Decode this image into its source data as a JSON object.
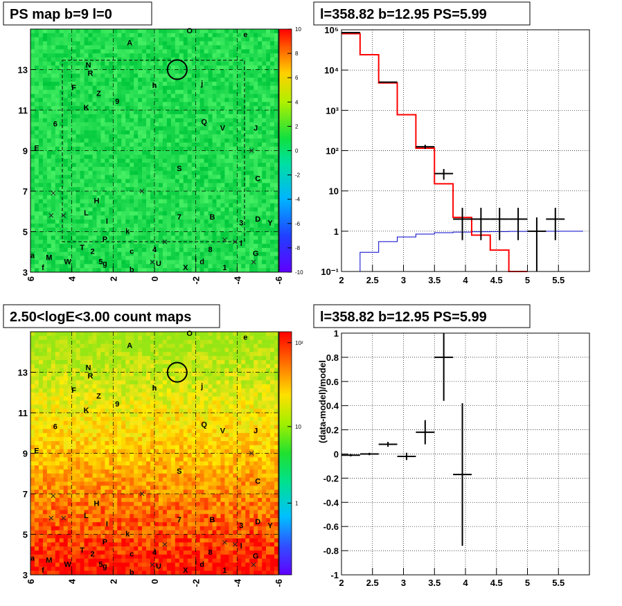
{
  "chart_data": [
    {
      "type": "heatmap",
      "title": "PS map b=9 l=0",
      "x_ticks": [
        "6",
        "4",
        "2",
        "0",
        "-2",
        "-4",
        "-6"
      ],
      "y_ticks": [
        "3",
        "5",
        "7",
        "9",
        "11",
        "13"
      ],
      "xlim": [
        6,
        -6
      ],
      "ylim": [
        3,
        15
      ],
      "colorbar_ticks": [
        "10",
        "8",
        "6",
        "4",
        "2",
        "0",
        "-2",
        "-4",
        "-6",
        "-8",
        "-10"
      ],
      "colorbar_range": [
        -10,
        10
      ],
      "circle": {
        "l": -1.1,
        "b": 13.0
      },
      "sources": [
        {
          "label": "O",
          "l": -1.7,
          "b": 14.8
        },
        {
          "label": "e",
          "l": -4.4,
          "b": 14.6
        },
        {
          "label": "A",
          "l": 1.2,
          "b": 14.2
        },
        {
          "label": "N",
          "l": 3.2,
          "b": 13.1
        },
        {
          "label": "R",
          "l": 3.1,
          "b": 12.7
        },
        {
          "label": "h",
          "l": 0.0,
          "b": 12.1
        },
        {
          "label": "j",
          "l": -2.3,
          "b": 12.2
        },
        {
          "label": "F",
          "l": 3.9,
          "b": 12.0
        },
        {
          "label": "Z",
          "l": 2.7,
          "b": 11.7
        },
        {
          "label": "9",
          "l": 1.8,
          "b": 11.3
        },
        {
          "label": "K",
          "l": 3.3,
          "b": 11.0
        },
        {
          "label": "6",
          "l": 4.8,
          "b": 10.2
        },
        {
          "label": "Q",
          "l": -2.4,
          "b": 10.3
        },
        {
          "label": "V",
          "l": -3.3,
          "b": 10.0
        },
        {
          "label": "J",
          "l": -4.9,
          "b": 10.0
        },
        {
          "label": "E",
          "l": 5.7,
          "b": 9.0
        },
        {
          "label": "S",
          "l": -1.2,
          "b": 8.0
        },
        {
          "label": "C",
          "l": -5.0,
          "b": 7.5
        },
        {
          "label": "H",
          "l": 2.8,
          "b": 6.4
        },
        {
          "label": "L",
          "l": 3.3,
          "b": 5.8
        },
        {
          "label": "I",
          "l": 2.3,
          "b": 5.4
        },
        {
          "label": "7",
          "l": -1.2,
          "b": 5.6
        },
        {
          "label": "B",
          "l": -2.8,
          "b": 5.6
        },
        {
          "label": "3",
          "l": -4.2,
          "b": 5.3
        },
        {
          "label": "D",
          "l": -5.0,
          "b": 5.5
        },
        {
          "label": "Y",
          "l": -5.6,
          "b": 5.3
        },
        {
          "label": "k",
          "l": 1.3,
          "b": 4.9
        },
        {
          "label": "P",
          "l": 2.4,
          "b": 4.5
        },
        {
          "label": "T",
          "l": 3.5,
          "b": 4.1
        },
        {
          "label": "2",
          "l": 3.0,
          "b": 3.9
        },
        {
          "label": "c",
          "l": 1.1,
          "b": 3.9
        },
        {
          "label": "4",
          "l": 0.0,
          "b": 4.0
        },
        {
          "label": "8",
          "l": -2.7,
          "b": 4.0
        },
        {
          "label": "l",
          "l": -4.2,
          "b": 4.3
        },
        {
          "label": "G",
          "l": -4.9,
          "b": 3.8
        },
        {
          "label": "a",
          "l": 5.9,
          "b": 3.7
        },
        {
          "label": "M",
          "l": 5.1,
          "b": 3.6
        },
        {
          "label": "W",
          "l": 4.2,
          "b": 3.4
        },
        {
          "label": "5",
          "l": 2.6,
          "b": 3.4
        },
        {
          "label": "g",
          "l": 2.4,
          "b": 3.3
        },
        {
          "label": "U",
          "l": -0.2,
          "b": 3.3
        },
        {
          "label": "i",
          "l": -2.0,
          "b": 3.5
        },
        {
          "label": "d",
          "l": -2.3,
          "b": 3.4
        },
        {
          "label": "X",
          "l": -1.5,
          "b": 3.1
        },
        {
          "label": "1",
          "l": -3.4,
          "b": 3.1
        },
        {
          "label": "f",
          "l": 5.4,
          "b": 3.1
        },
        {
          "label": "b",
          "l": 1.1,
          "b": 3.0
        }
      ],
      "crosses": [
        {
          "l": 4.9,
          "b": 6.9
        },
        {
          "l": 0.6,
          "b": 7.0
        },
        {
          "l": 5.0,
          "b": 5.8
        },
        {
          "l": 4.4,
          "b": 5.8
        },
        {
          "l": -0.5,
          "b": 4.5
        },
        {
          "l": -3.4,
          "b": 4.6
        },
        {
          "l": -3.9,
          "b": 4.5
        },
        {
          "l": -4.8,
          "b": 3.5
        },
        {
          "l": 0.1,
          "b": 3.5
        },
        {
          "l": -4.7,
          "b": 9.0
        }
      ]
    },
    {
      "type": "line",
      "title": "l=358.82 b=12.95 PS=5.99",
      "xlim": [
        2,
        6
      ],
      "ylim": [
        0.1,
        100000
      ],
      "log_y": true,
      "x_ticks": [
        "2",
        "2.5",
        "3",
        "3.5",
        "4",
        "4.5",
        "5",
        "5.5"
      ],
      "y_ticks": [
        "10⁻¹",
        "1",
        "10",
        "10²",
        "10³",
        "10⁴",
        "10⁵"
      ],
      "grid": true,
      "bin_edges": [
        2.0,
        2.3,
        2.6,
        2.9,
        3.2,
        3.5,
        3.8,
        4.1,
        4.4,
        4.7,
        5.0,
        5.3,
        5.6,
        5.9
      ],
      "series": [
        {
          "color": "#ff0000",
          "values": [
            80000,
            24000,
            4800,
            780,
            115,
            15,
            2.2,
            0.8,
            0.34,
            0.1
          ]
        },
        {
          "color": "#0000cc",
          "values": [
            0.1,
            0.3,
            0.55,
            0.72,
            0.85,
            0.92,
            0.95,
            0.97,
            0.98,
            0.99,
            1.0,
            1.0,
            1.0
          ]
        },
        {
          "color": "#000000",
          "values": [
            85000,
            null,
            5000,
            null,
            125,
            27,
            2,
            2,
            2,
            2,
            1,
            2,
            null
          ]
        }
      ],
      "errors_low": [
        null,
        null,
        null,
        null,
        15,
        8,
        1.4,
        1.4,
        1.4,
        1.4,
        0.95,
        1.4,
        null
      ],
      "errors_high": [
        null,
        null,
        null,
        null,
        15,
        8,
        1.8,
        1.8,
        1.8,
        1.8,
        1.2,
        1.8,
        null
      ]
    },
    {
      "type": "heatmap",
      "title": "2.50<logE<3.00 count maps",
      "x_ticks": [
        "6",
        "4",
        "2",
        "0",
        "-2",
        "-4",
        "-6"
      ],
      "y_ticks": [
        "3",
        "5",
        "7",
        "9",
        "11",
        "13"
      ],
      "xlim": [
        6,
        -6
      ],
      "ylim": [
        3,
        15
      ],
      "colorbar_ticks": [
        "10²",
        "10",
        "1"
      ],
      "colorbar_log": true
    },
    {
      "type": "scatter",
      "title": "l=358.82 b=12.95 PS=5.99",
      "ylabel": "(data-model)/model",
      "xlim": [
        2,
        6
      ],
      "ylim": [
        -1,
        1
      ],
      "x_ticks": [
        "2",
        "2.5",
        "3",
        "3.5",
        "4",
        "4.5",
        "5",
        "5.5"
      ],
      "y_ticks": [
        "-1",
        "-0.8",
        "-0.6",
        "-0.4",
        "-0.2",
        "0",
        "0.2",
        "0.4",
        "0.6",
        "0.8",
        "1"
      ],
      "grid": true,
      "points": [
        {
          "x": 2.15,
          "y": -0.01,
          "xerr": 0.15,
          "yerr": 0.01
        },
        {
          "x": 2.45,
          "y": 0.0,
          "xerr": 0.15,
          "yerr": 0.01
        },
        {
          "x": 2.75,
          "y": 0.08,
          "xerr": 0.15,
          "yerr": 0.02
        },
        {
          "x": 3.05,
          "y": -0.02,
          "xerr": 0.15,
          "yerr": 0.03
        },
        {
          "x": 3.35,
          "y": 0.18,
          "xerr": 0.15,
          "yerr": 0.1
        },
        {
          "x": 3.65,
          "y": 0.8,
          "xerr": 0.15,
          "yerr": 0.36
        },
        {
          "x": 3.95,
          "y": -0.17,
          "xerr": 0.15,
          "yerr": 0.59
        }
      ]
    }
  ]
}
